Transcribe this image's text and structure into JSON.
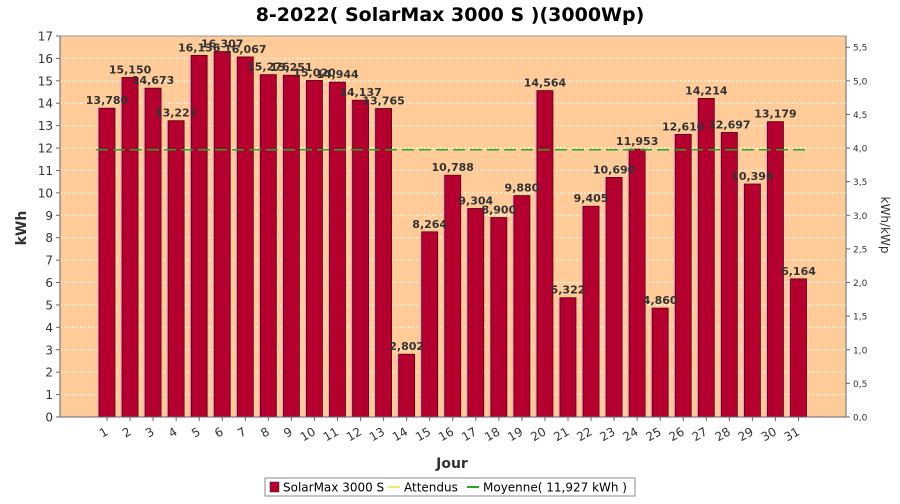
{
  "chart_data": {
    "type": "bar",
    "title": "8-2022( SolarMax 3000 S )(3000Wp)",
    "xlabel": "Jour",
    "ylabel": "kWh",
    "y2label": "kWh/kWp",
    "categories": [
      "1",
      "2",
      "3",
      "4",
      "5",
      "6",
      "7",
      "8",
      "9",
      "10",
      "11",
      "12",
      "13",
      "14",
      "15",
      "16",
      "17",
      "18",
      "19",
      "20",
      "21",
      "22",
      "23",
      "24",
      "25",
      "26",
      "27",
      "28",
      "29",
      "30",
      "31"
    ],
    "series": [
      {
        "name": "SolarMax 3000 S",
        "values": [
          13.78,
          15.15,
          14.673,
          13.221,
          16.136,
          16.307,
          16.067,
          15.276,
          15.251,
          15.02,
          14.944,
          14.137,
          13.765,
          2.802,
          8.264,
          10.788,
          9.304,
          8.9,
          9.88,
          14.564,
          5.322,
          9.405,
          10.69,
          11.953,
          4.86,
          12.61,
          14.214,
          12.697,
          10.396,
          13.179,
          6.164
        ],
        "color": "#b5002f"
      }
    ],
    "data_labels": [
      "13,780",
      "15,150",
      "14,673",
      "13,221",
      "16,136",
      "16,307",
      "16,067",
      "15,276",
      "15,251",
      "15,020",
      "14,944",
      "14,137",
      "13,765",
      "2,802",
      "8,264",
      "10,788",
      "9,304",
      "8,900",
      "9,880",
      "14,564",
      "5,322",
      "9,405",
      "10,690",
      "11,953",
      "4,860",
      "12,610",
      "14,214",
      "12,697",
      "10,396",
      "13,179",
      "6,164"
    ],
    "average": {
      "label": "Moyenne( 11,927 kWh )",
      "value": 11.927,
      "color": "#22aa22"
    },
    "expected": {
      "label": "Attendus",
      "color": "#f5e86a"
    },
    "ylim": [
      0,
      17
    ],
    "y_ticks": [
      "0",
      "1",
      "2",
      "3",
      "4",
      "5",
      "6",
      "7",
      "8",
      "9",
      "10",
      "11",
      "12",
      "13",
      "14",
      "15",
      "16",
      "17"
    ],
    "y2lim": [
      0,
      5.6667
    ],
    "y2_ticks": [
      "0,0",
      "0,5",
      "1,0",
      "1,5",
      "2,0",
      "2,5",
      "3,0",
      "3,5",
      "4,0",
      "4,5",
      "5,0",
      "5,5"
    ],
    "y2_tick_values": [
      0,
      0.5,
      1.0,
      1.5,
      2.0,
      2.5,
      3.0,
      3.5,
      4.0,
      4.5,
      5.0,
      5.5
    ],
    "plot_background": "#ffcc99",
    "grid": true,
    "legend_position": "bottom"
  }
}
